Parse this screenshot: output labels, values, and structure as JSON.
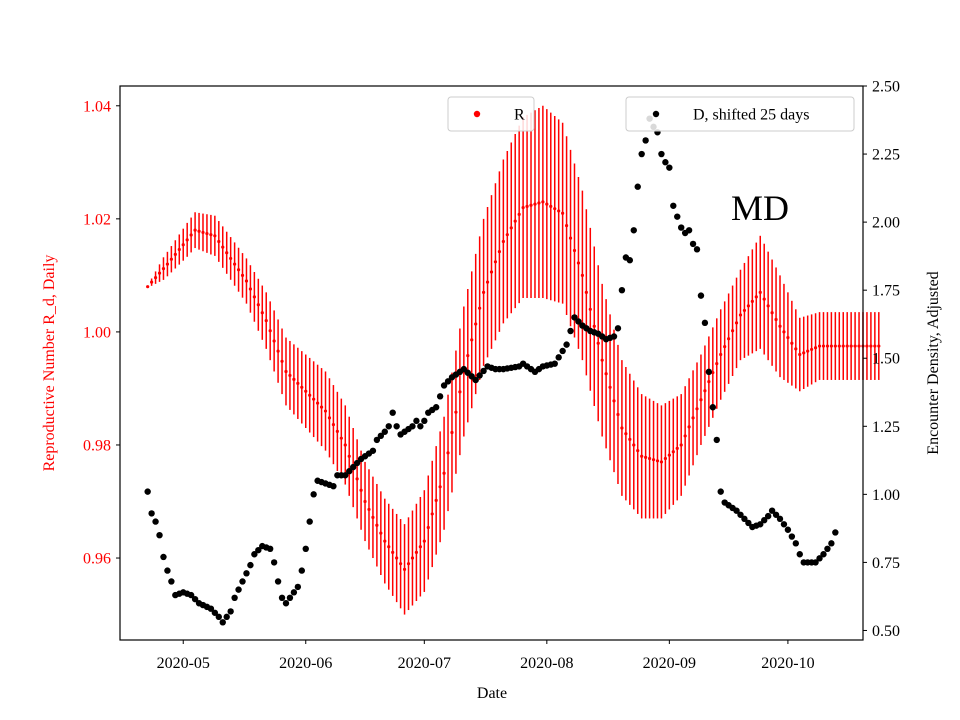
{
  "chart_data": {
    "type": "scatter",
    "state_label": "MD",
    "xlabel": "Date",
    "ylabel_left": "Reproductive Number R_d, Daily",
    "ylabel_right": "Encounter Density, Adjusted",
    "xlim": [
      "2020-04-15",
      "2020-10-20"
    ],
    "ylim_left": [
      0.9455,
      1.0435
    ],
    "ylim_right": [
      0.465,
      2.5
    ],
    "xticks": [
      {
        "date": "2020-05-01",
        "label": "2020-05"
      },
      {
        "date": "2020-06-01",
        "label": "2020-06"
      },
      {
        "date": "2020-07-01",
        "label": "2020-07"
      },
      {
        "date": "2020-08-01",
        "label": "2020-08"
      },
      {
        "date": "2020-09-01",
        "label": "2020-09"
      },
      {
        "date": "2020-10-01",
        "label": "2020-10"
      }
    ],
    "yticks_left": [
      "0.96",
      "0.98",
      "1.00",
      "1.02",
      "1.04"
    ],
    "yticks_right": [
      "0.50",
      "0.75",
      "1.00",
      "1.25",
      "1.50",
      "1.75",
      "2.00",
      "2.25",
      "2.50"
    ],
    "legend": {
      "r_label": "R",
      "d_label": "D, shifted 25 days"
    },
    "colors": {
      "r": "#ff0000",
      "d": "#000000"
    },
    "r_series": {
      "name": "R",
      "start_date": "2020-04-22",
      "center_nodes": [
        [
          0,
          1.008
        ],
        [
          5,
          1.012
        ],
        [
          12,
          1.018
        ],
        [
          17,
          1.017
        ],
        [
          25,
          1.009
        ],
        [
          30,
          1.002
        ],
        [
          35,
          0.993
        ],
        [
          45,
          0.986
        ],
        [
          50,
          0.98
        ],
        [
          55,
          0.97
        ],
        [
          60,
          0.963
        ],
        [
          65,
          0.958
        ],
        [
          70,
          0.963
        ],
        [
          75,
          0.975
        ],
        [
          80,
          0.993
        ],
        [
          85,
          1.007
        ],
        [
          90,
          1.016
        ],
        [
          95,
          1.022
        ],
        [
          100,
          1.023
        ],
        [
          105,
          1.021
        ],
        [
          110,
          1.01
        ],
        [
          115,
          0.995
        ],
        [
          120,
          0.983
        ],
        [
          125,
          0.978
        ],
        [
          130,
          0.977
        ],
        [
          135,
          0.98
        ],
        [
          140,
          0.988
        ],
        [
          145,
          0.996
        ],
        [
          150,
          1.003
        ],
        [
          155,
          1.007
        ],
        [
          160,
          1.001
        ],
        [
          165,
          0.996
        ],
        [
          170,
          0.9975
        ],
        [
          180,
          0.9975
        ],
        [
          185,
          0.9975
        ]
      ],
      "half_error_nodes": [
        [
          0,
          0.0002
        ],
        [
          4,
          0.002
        ],
        [
          10,
          0.003
        ],
        [
          16,
          0.0035
        ],
        [
          25,
          0.004
        ],
        [
          35,
          0.006
        ],
        [
          45,
          0.007
        ],
        [
          55,
          0.007
        ],
        [
          65,
          0.008
        ],
        [
          75,
          0.01
        ],
        [
          85,
          0.013
        ],
        [
          95,
          0.016
        ],
        [
          100,
          0.017
        ],
        [
          110,
          0.015
        ],
        [
          120,
          0.012
        ],
        [
          130,
          0.01
        ],
        [
          140,
          0.008
        ],
        [
          150,
          0.008
        ],
        [
          155,
          0.01
        ],
        [
          160,
          0.009
        ],
        [
          165,
          0.0065
        ],
        [
          170,
          0.006
        ],
        [
          185,
          0.006
        ]
      ],
      "n_days": 186
    },
    "d_series": {
      "name": "D, shifted 25 days",
      "start_date": "2020-04-22",
      "nodes": [
        [
          0,
          1.01
        ],
        [
          1,
          0.93
        ],
        [
          2,
          0.9
        ],
        [
          3,
          0.85
        ],
        [
          4,
          0.77
        ],
        [
          5,
          0.72
        ],
        [
          6,
          0.68
        ],
        [
          7,
          0.63
        ],
        [
          9,
          0.64
        ],
        [
          11,
          0.63
        ],
        [
          13,
          0.6
        ],
        [
          16,
          0.58
        ],
        [
          18,
          0.55
        ],
        [
          19,
          0.53
        ],
        [
          20,
          0.55
        ],
        [
          21,
          0.57
        ],
        [
          22,
          0.62
        ],
        [
          24,
          0.68
        ],
        [
          26,
          0.74
        ],
        [
          27,
          0.78
        ],
        [
          29,
          0.81
        ],
        [
          31,
          0.8
        ],
        [
          32,
          0.75
        ],
        [
          33,
          0.68
        ],
        [
          34,
          0.62
        ],
        [
          35,
          0.6
        ],
        [
          36,
          0.62
        ],
        [
          38,
          0.66
        ],
        [
          39,
          0.72
        ],
        [
          40,
          0.8
        ],
        [
          41,
          0.9
        ],
        [
          42,
          1.0
        ],
        [
          43,
          1.05
        ],
        [
          45,
          1.04
        ],
        [
          47,
          1.03
        ],
        [
          48,
          1.07
        ],
        [
          50,
          1.07
        ],
        [
          52,
          1.1
        ],
        [
          54,
          1.13
        ],
        [
          57,
          1.16
        ],
        [
          58,
          1.2
        ],
        [
          60,
          1.23
        ],
        [
          61,
          1.25
        ],
        [
          62,
          1.3
        ],
        [
          63,
          1.25
        ],
        [
          64,
          1.22
        ],
        [
          65,
          1.23
        ],
        [
          67,
          1.25
        ],
        [
          68,
          1.27
        ],
        [
          69,
          1.25
        ],
        [
          70,
          1.27
        ],
        [
          71,
          1.3
        ],
        [
          73,
          1.32
        ],
        [
          75,
          1.4
        ],
        [
          77,
          1.43
        ],
        [
          80,
          1.46
        ],
        [
          83,
          1.42
        ],
        [
          86,
          1.47
        ],
        [
          88,
          1.46
        ],
        [
          90,
          1.46
        ],
        [
          94,
          1.47
        ],
        [
          95,
          1.48
        ],
        [
          98,
          1.45
        ],
        [
          100,
          1.47
        ],
        [
          103,
          1.48
        ],
        [
          106,
          1.55
        ],
        [
          108,
          1.65
        ],
        [
          110,
          1.62
        ],
        [
          112,
          1.6
        ],
        [
          114,
          1.59
        ],
        [
          116,
          1.57
        ],
        [
          118,
          1.58
        ],
        [
          119,
          1.61
        ],
        [
          120,
          1.75
        ],
        [
          121,
          1.87
        ],
        [
          122,
          1.86
        ],
        [
          123,
          1.97
        ],
        [
          124,
          2.13
        ],
        [
          125,
          2.25
        ],
        [
          126,
          2.3
        ],
        [
          127,
          2.38
        ],
        [
          128,
          2.35
        ],
        [
          129,
          2.33
        ],
        [
          130,
          2.25
        ],
        [
          131,
          2.22
        ],
        [
          132,
          2.2
        ],
        [
          133,
          2.06
        ],
        [
          134,
          2.02
        ],
        [
          135,
          1.98
        ],
        [
          136,
          1.96
        ],
        [
          137,
          1.97
        ],
        [
          138,
          1.92
        ],
        [
          139,
          1.9
        ],
        [
          140,
          1.73
        ],
        [
          141,
          1.63
        ],
        [
          142,
          1.45
        ],
        [
          143,
          1.32
        ],
        [
          144,
          1.2
        ],
        [
          145,
          1.01
        ],
        [
          146,
          0.97
        ],
        [
          147,
          0.96
        ],
        [
          149,
          0.94
        ],
        [
          151,
          0.91
        ],
        [
          153,
          0.88
        ],
        [
          155,
          0.89
        ],
        [
          157,
          0.92
        ],
        [
          158,
          0.94
        ],
        [
          160,
          0.91
        ],
        [
          162,
          0.87
        ],
        [
          164,
          0.82
        ],
        [
          165,
          0.78
        ],
        [
          166,
          0.75
        ],
        [
          169,
          0.75
        ],
        [
          171,
          0.78
        ],
        [
          173,
          0.82
        ],
        [
          174,
          0.86
        ]
      ],
      "n_days": 175
    }
  }
}
